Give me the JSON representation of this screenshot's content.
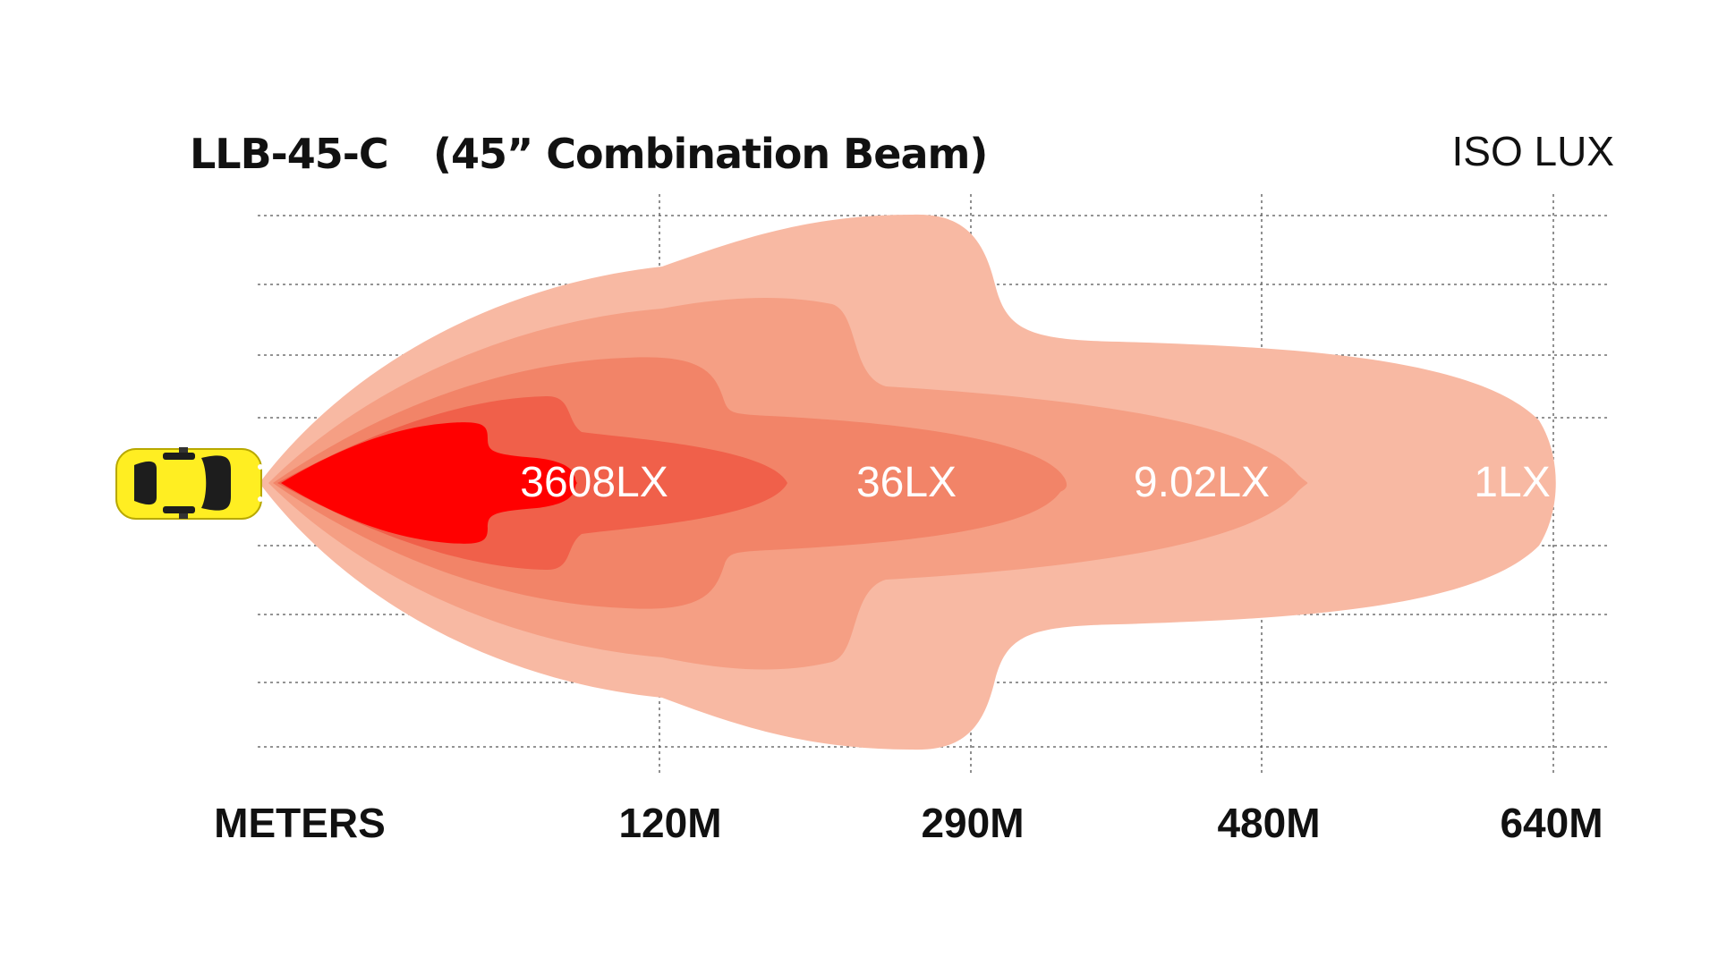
{
  "title": {
    "model": "LLB-45-C",
    "description": "(45” Combination Beam)"
  },
  "legend_title": "ISO LUX",
  "zones": [
    {
      "label": "3608LX",
      "color": "#f0604a"
    },
    {
      "label": "36LX",
      "color": "#f28468"
    },
    {
      "label": "9.02LX",
      "color": "#f59f84"
    },
    {
      "label": "1LX",
      "color": "#f8b9a3"
    }
  ],
  "core_color": "#ff0000",
  "axis": {
    "label": "METERS",
    "ticks": [
      "120M",
      "290M",
      "480M",
      "640M"
    ]
  },
  "car_color": "#ffee22",
  "grid_color": "#555555",
  "icons": {
    "vehicle": "car-top-view-icon"
  }
}
